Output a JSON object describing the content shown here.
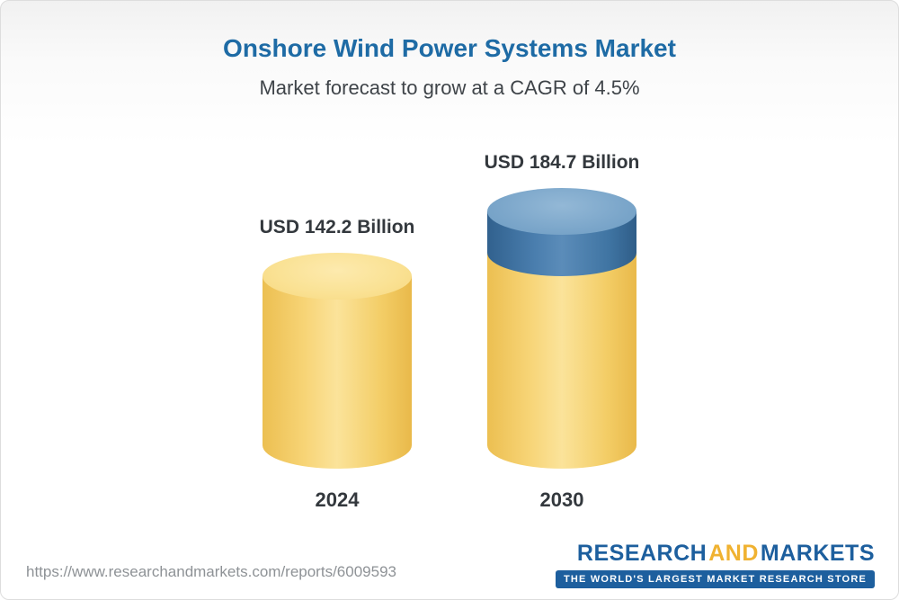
{
  "chart_data": {
    "type": "bar",
    "title": "Onshore Wind Power Systems Market",
    "subtitle": "Market forecast to grow at a CAGR of 4.5%",
    "cagr_percent": 4.5,
    "unit": "USD Billion",
    "categories": [
      "2024",
      "2030"
    ],
    "values": [
      142.2,
      184.7
    ],
    "value_labels": [
      "USD 142.2 Billion",
      "USD 184.7 Billion"
    ],
    "ylim": [
      0,
      184.7
    ],
    "grid": false,
    "legend": false,
    "notes": "Cylinder pictogram bar chart; 2030 bar shows growth increment as blue cap over yellow base equal to 2024 value",
    "colors": {
      "base_segment": "#f6d06c",
      "base_segment_top": "#f9df90",
      "growth_segment": "#41759f",
      "growth_segment_top": "#7ba6ca",
      "title": "#1e6ba5",
      "subtitle_text": "#3f4449",
      "label_text": "#33383d"
    }
  },
  "footer": {
    "url": "https://www.researchandmarkets.com/reports/6009593",
    "logo": {
      "word1": "RESEARCH",
      "word2": "AND",
      "word3": "MARKETS",
      "tagline": "THE WORLD'S LARGEST MARKET RESEARCH STORE",
      "brand_blue": "#1d5f9e",
      "brand_gold": "#f0b231"
    }
  }
}
